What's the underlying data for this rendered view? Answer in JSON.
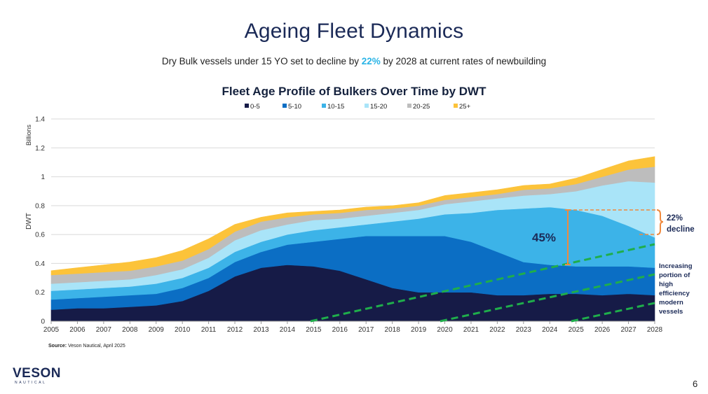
{
  "slide": {
    "title": "Ageing Fleet Dynamics",
    "subtitle_before": "Dry Bulk vessels under 15 YO set to decline by ",
    "subtitle_highlight": "22%",
    "subtitle_after": " by 2028 at current rates of newbuilding",
    "source_label": "Source:",
    "source_text": " Veson Nautical, April 2025",
    "page_number": "6",
    "logo_text": "VESON",
    "logo_sub": "NAUTICAL"
  },
  "colors": {
    "0-5": "#161b47",
    "5-10": "#0b6ec4",
    "10-15": "#3cb3e8",
    "15-20": "#a9e4f8",
    "20-25": "#bdbdbd",
    "25+": "#fcc33a",
    "annotation_orange": "#f08a3e",
    "trend_green": "#1fae4b",
    "highlight_blue": "#2ab4e6"
  },
  "chart_data": {
    "type": "area",
    "title": "Fleet Age Profile of Bulkers Over Time by DWT",
    "ylabel": "DWT",
    "yunit_label": "Billions",
    "ylim": [
      0,
      1.4
    ],
    "yticks": [
      0,
      0.2,
      0.4,
      0.6,
      0.8,
      1,
      1.2,
      1.4
    ],
    "ytick_labels": [
      "0",
      "0.2",
      "0.4",
      "0.6",
      "0.8",
      "1",
      "1.2",
      "1.4"
    ],
    "x": [
      2005,
      2006,
      2007,
      2008,
      2009,
      2010,
      2011,
      2012,
      2013,
      2014,
      2015,
      2016,
      2017,
      2018,
      2019,
      2020,
      2021,
      2022,
      2023,
      2024,
      2025,
      2026,
      2027,
      2028
    ],
    "x_tick_labels": [
      "2005",
      "2006",
      "2007",
      "2008",
      "2009",
      "2010",
      "2011",
      "2012",
      "2013",
      "2014",
      "2015",
      "2016",
      "2017",
      "2018",
      "2019",
      "2020",
      "2021",
      "2022",
      "2023",
      "2024",
      "2025",
      "2026",
      "2027",
      "2028"
    ],
    "grid": true,
    "legend_position": "top-center",
    "stacked": true,
    "series": [
      {
        "name": "0-5",
        "values": [
          0.08,
          0.09,
          0.09,
          0.1,
          0.11,
          0.14,
          0.21,
          0.31,
          0.37,
          0.39,
          0.38,
          0.35,
          0.29,
          0.23,
          0.2,
          0.2,
          0.2,
          0.18,
          0.18,
          0.19,
          0.19,
          0.18,
          0.19,
          0.18
        ]
      },
      {
        "name": "5-10",
        "values": [
          0.07,
          0.07,
          0.08,
          0.08,
          0.08,
          0.09,
          0.09,
          0.1,
          0.11,
          0.14,
          0.17,
          0.22,
          0.3,
          0.36,
          0.39,
          0.39,
          0.35,
          0.3,
          0.23,
          0.2,
          0.19,
          0.2,
          0.19,
          0.19
        ]
      },
      {
        "name": "10-15",
        "values": [
          0.06,
          0.06,
          0.06,
          0.06,
          0.07,
          0.07,
          0.07,
          0.07,
          0.07,
          0.07,
          0.08,
          0.08,
          0.08,
          0.1,
          0.12,
          0.15,
          0.2,
          0.29,
          0.37,
          0.4,
          0.39,
          0.35,
          0.28,
          0.21
        ]
      },
      {
        "name": "15-20",
        "values": [
          0.05,
          0.05,
          0.05,
          0.05,
          0.06,
          0.06,
          0.07,
          0.08,
          0.08,
          0.07,
          0.07,
          0.06,
          0.06,
          0.06,
          0.06,
          0.07,
          0.08,
          0.08,
          0.09,
          0.09,
          0.13,
          0.21,
          0.31,
          0.38
        ]
      },
      {
        "name": "20-25",
        "values": [
          0.06,
          0.06,
          0.06,
          0.06,
          0.06,
          0.06,
          0.06,
          0.06,
          0.06,
          0.05,
          0.04,
          0.04,
          0.04,
          0.03,
          0.03,
          0.03,
          0.03,
          0.03,
          0.04,
          0.04,
          0.05,
          0.06,
          0.08,
          0.11
        ]
      },
      {
        "name": "25+",
        "values": [
          0.03,
          0.04,
          0.05,
          0.06,
          0.06,
          0.07,
          0.07,
          0.05,
          0.03,
          0.03,
          0.02,
          0.02,
          0.02,
          0.02,
          0.02,
          0.03,
          0.03,
          0.03,
          0.03,
          0.03,
          0.04,
          0.05,
          0.06,
          0.07
        ]
      }
    ],
    "annotations": {
      "bracket_label": "45%",
      "decline_label_line1": "22%",
      "decline_label_line2": "decline",
      "modern_lines": [
        "Increasing",
        "portion of",
        "high",
        "efficiency",
        "modern",
        "vessels"
      ]
    }
  }
}
